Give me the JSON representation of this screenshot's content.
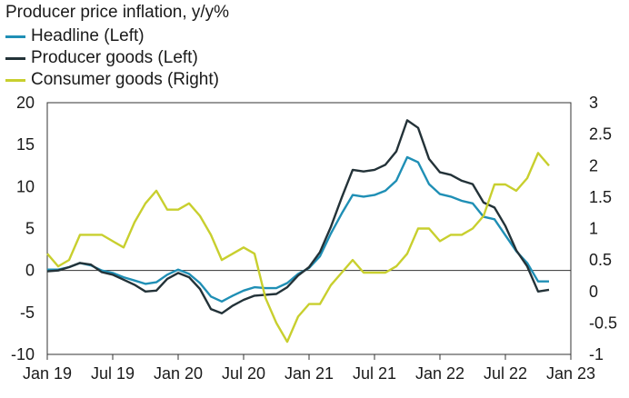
{
  "chart_data": {
    "type": "line",
    "title": "Producer price inflation, y/y%",
    "x_labels": [
      "Jan 19",
      "Jul 19",
      "Jan 20",
      "Jul 20",
      "Jan 21",
      "Jul 21",
      "Jan 22",
      "Jul 22",
      "Jan 23"
    ],
    "left_axis": {
      "ylim": [
        -10,
        20
      ],
      "ticks": [
        "20",
        "15",
        "10",
        "5",
        "0",
        "-5",
        "-10"
      ]
    },
    "right_axis": {
      "ylim": [
        -1,
        3
      ],
      "ticks": [
        "3",
        "2.5",
        "2",
        "1.5",
        "1",
        "0.5",
        "0",
        "-0.5",
        "-1"
      ]
    },
    "months": [
      "2019-01",
      "2019-02",
      "2019-03",
      "2019-04",
      "2019-05",
      "2019-06",
      "2019-07",
      "2019-08",
      "2019-09",
      "2019-10",
      "2019-11",
      "2019-12",
      "2020-01",
      "2020-02",
      "2020-03",
      "2020-04",
      "2020-05",
      "2020-06",
      "2020-07",
      "2020-08",
      "2020-09",
      "2020-10",
      "2020-11",
      "2020-12",
      "2021-01",
      "2021-02",
      "2021-03",
      "2021-04",
      "2021-05",
      "2021-06",
      "2021-07",
      "2021-08",
      "2021-09",
      "2021-10",
      "2021-11",
      "2021-12",
      "2022-01",
      "2022-02",
      "2022-03",
      "2022-04",
      "2022-05",
      "2022-06",
      "2022-07",
      "2022-08",
      "2022-09",
      "2022-10",
      "2022-11"
    ],
    "series": [
      {
        "name": "Headline (Left)",
        "axis": "left",
        "color": "#1f8fb5",
        "values": [
          0.1,
          0.1,
          0.4,
          0.9,
          0.6,
          0.0,
          -0.3,
          -0.8,
          -1.2,
          -1.6,
          -1.4,
          -0.5,
          0.1,
          -0.4,
          -1.5,
          -3.1,
          -3.7,
          -3.0,
          -2.4,
          -2.0,
          -2.1,
          -2.1,
          -1.5,
          -0.4,
          0.3,
          1.7,
          4.4,
          6.8,
          9.0,
          8.8,
          9.0,
          9.5,
          10.7,
          13.5,
          12.9,
          10.3,
          9.1,
          8.8,
          8.3,
          8.0,
          6.4,
          6.1,
          4.2,
          2.3,
          0.9,
          -1.3,
          -1.3
        ]
      },
      {
        "name": "Producer goods (Left)",
        "axis": "left",
        "color": "#233238",
        "values": [
          -0.1,
          0.0,
          0.4,
          0.9,
          0.7,
          -0.2,
          -0.5,
          -1.1,
          -1.7,
          -2.5,
          -2.4,
          -1.0,
          -0.3,
          -0.8,
          -2.2,
          -4.6,
          -5.1,
          -4.2,
          -3.5,
          -3.0,
          -2.9,
          -2.8,
          -2.0,
          -0.6,
          0.4,
          2.2,
          5.2,
          8.7,
          12.0,
          11.8,
          12.0,
          12.6,
          14.2,
          17.9,
          17.0,
          13.3,
          11.7,
          11.4,
          10.7,
          10.3,
          8.1,
          7.5,
          5.3,
          2.4,
          0.5,
          -2.5,
          -2.3
        ]
      },
      {
        "name": "Consumer goods (Right)",
        "axis": "right",
        "color": "#c8cf2e",
        "values": [
          0.6,
          0.4,
          0.5,
          0.9,
          0.9,
          0.9,
          0.8,
          0.7,
          1.1,
          1.4,
          1.6,
          1.3,
          1.3,
          1.4,
          1.2,
          0.9,
          0.5,
          0.6,
          0.7,
          0.6,
          -0.1,
          -0.5,
          -0.8,
          -0.4,
          -0.2,
          -0.2,
          0.1,
          0.3,
          0.5,
          0.3,
          0.3,
          0.3,
          0.4,
          0.6,
          1.0,
          1.0,
          0.8,
          0.9,
          0.9,
          1.0,
          1.2,
          1.7,
          1.7,
          1.6,
          1.8,
          2.2,
          2.0
        ]
      }
    ],
    "grid": false,
    "zero_line": true,
    "legend": "top-left"
  }
}
